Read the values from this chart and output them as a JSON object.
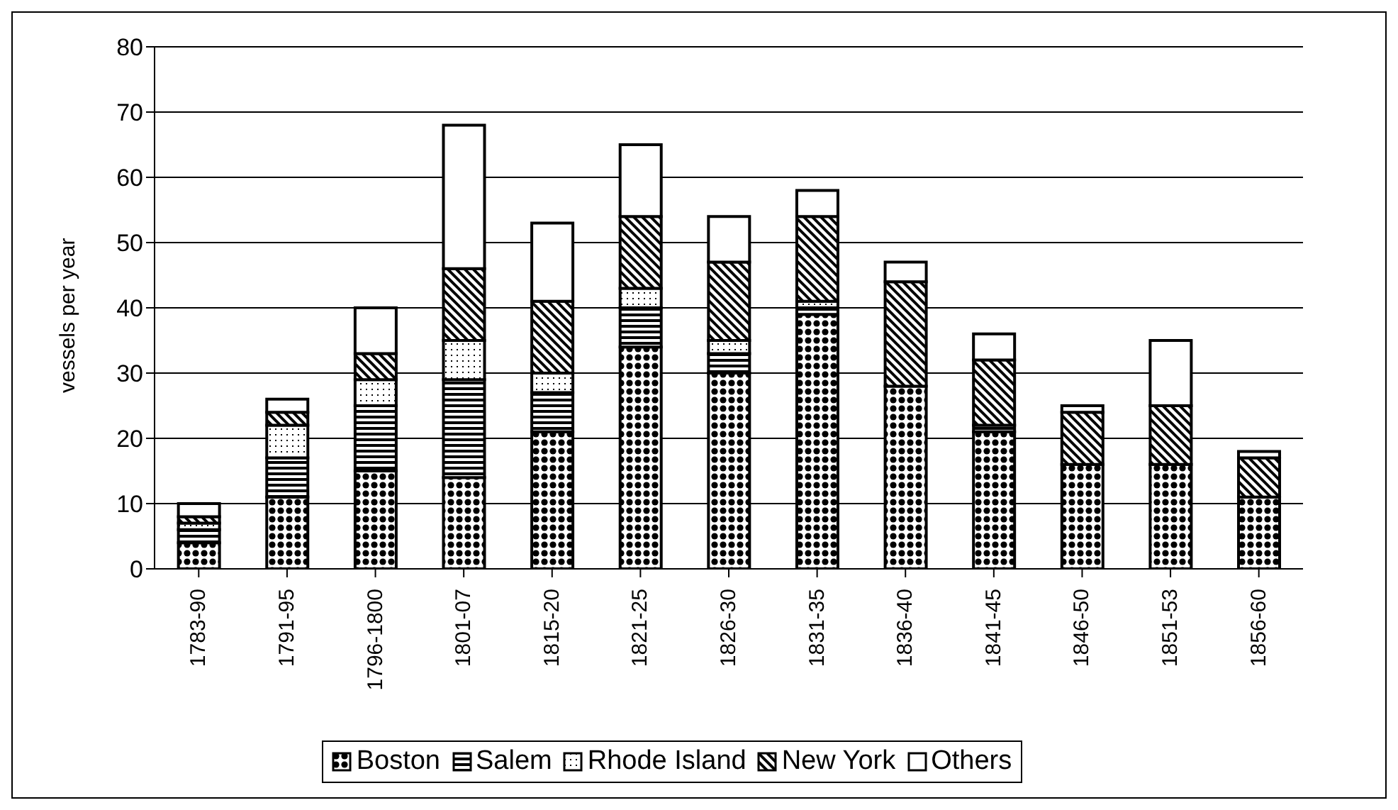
{
  "chart_data": {
    "type": "bar",
    "stacked": true,
    "ylabel": "vessels per year",
    "categories": [
      "1783-90",
      "1791-95",
      "1796-1800",
      "1801-07",
      "1815-20",
      "1821-25",
      "1826-30",
      "1831-35",
      "1836-40",
      "1841-45",
      "1846-50",
      "1851-53",
      "1856-60"
    ],
    "series": [
      {
        "name": "Boston",
        "color": "#000000",
        "values": [
          4,
          11,
          15,
          14,
          21,
          34,
          30,
          39,
          28,
          21,
          16,
          16,
          11
        ]
      },
      {
        "name": "Salem",
        "color": "#000000",
        "values": [
          2,
          6,
          10,
          15,
          6,
          6,
          3,
          1,
          0,
          1,
          0,
          0,
          0
        ]
      },
      {
        "name": "Rhode Island",
        "color": "#000000",
        "values": [
          1,
          5,
          4,
          6,
          3,
          3,
          2,
          1,
          0,
          0,
          0,
          0,
          0
        ]
      },
      {
        "name": "New York",
        "color": "#000000",
        "values": [
          1,
          2,
          4,
          11,
          11,
          11,
          12,
          13,
          16,
          10,
          8,
          9,
          6
        ]
      },
      {
        "name": "Others",
        "color": "#ffffff",
        "values": [
          2,
          2,
          7,
          22,
          12,
          11,
          7,
          4,
          3,
          4,
          1,
          10,
          1
        ]
      }
    ],
    "ylim": [
      0,
      80
    ],
    "yticks": [
      0,
      10,
      20,
      30,
      40,
      50,
      60,
      70,
      80
    ],
    "grid": "y",
    "legend": "bottom"
  }
}
